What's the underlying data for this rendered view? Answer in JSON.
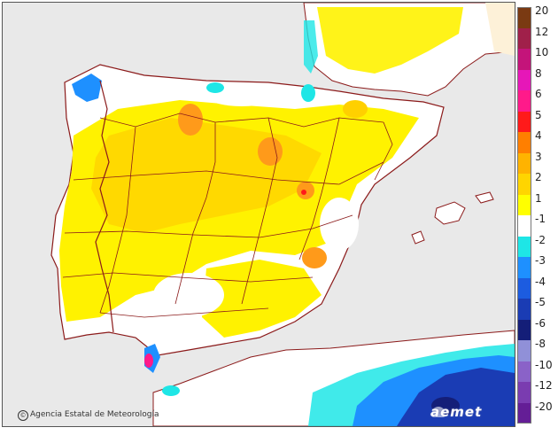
{
  "credit": {
    "text": "Agencia Estatal de Meteorología",
    "symbol": "©"
  },
  "logo": {
    "text": "aemet"
  },
  "legend": {
    "items": [
      {
        "label": "20",
        "color": "#7a3a12"
      },
      {
        "label": "12",
        "color": "#a0204a"
      },
      {
        "label": "10",
        "color": "#c4147a"
      },
      {
        "label": "8",
        "color": "#e617b8"
      },
      {
        "label": "6",
        "color": "#ff1a8a"
      },
      {
        "label": "5",
        "color": "#ff1a1a"
      },
      {
        "label": "4",
        "color": "#ff7f00"
      },
      {
        "label": "3",
        "color": "#ffb300"
      },
      {
        "label": "2",
        "color": "#ffd500"
      },
      {
        "label": "1",
        "color": "#ffff00"
      },
      {
        "label": "-1",
        "color": "#ffffff"
      },
      {
        "label": "-2",
        "color": "#1ee6e6"
      },
      {
        "label": "-3",
        "color": "#1e90ff"
      },
      {
        "label": "-4",
        "color": "#1c5ce0"
      },
      {
        "label": "-5",
        "color": "#1a3cb4"
      },
      {
        "label": "-6",
        "color": "#141e78"
      },
      {
        "label": "-8",
        "color": "#9090d8"
      },
      {
        "label": "-10",
        "color": "#8a62c8"
      },
      {
        "label": "-12",
        "color": "#7a3cb0"
      },
      {
        "label": "-20",
        "color": "#641e96"
      }
    ]
  },
  "colors": {
    "land": "#ffffff",
    "sea": "#e9e9e9",
    "border": "#8b1a1a",
    "anomaly_low": "#fff200",
    "anomaly_mid": "#ffd000",
    "anomaly_high": "#ff9a1a"
  }
}
